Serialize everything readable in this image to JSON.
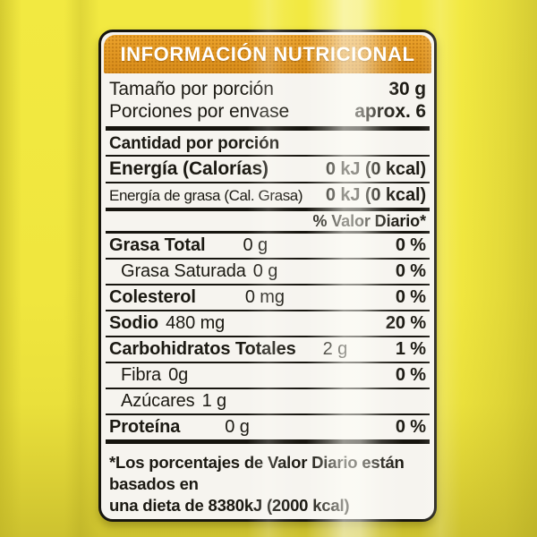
{
  "label": {
    "title": "INFORMACIÓN NUTRICIONAL",
    "serving_rows": [
      {
        "label": "Tamaño por porción",
        "value": "30 g"
      },
      {
        "label": "Porciones por envase",
        "value": "aprox. 6"
      }
    ],
    "section_heading": "Cantidad por porción",
    "energy_rows": [
      {
        "label": "Energía (Calorías)",
        "value": "0 kJ (0 kcal)"
      },
      {
        "label": "Energía de grasa (Cal. Grasa)",
        "value": "0 kJ (0 kcal)"
      }
    ],
    "daily_value_heading": "% Valor Diario*",
    "nutrients": [
      {
        "name": "Grasa Total",
        "amount": "0 g",
        "dv": "0 %"
      },
      {
        "name": "Grasa Saturada",
        "amount": "0 g",
        "dv": "0 %"
      },
      {
        "name": "Colesterol",
        "amount": "0 mg",
        "dv": "0 %"
      },
      {
        "name": "Sodio",
        "amount": "480 mg",
        "dv": "20 %"
      },
      {
        "name": "Carbohidratos Totales",
        "amount": "2 g",
        "dv": "1 %"
      },
      {
        "name": "Fibra",
        "amount": "0g",
        "dv": "0 %"
      },
      {
        "name": "Azúcares",
        "amount": "1 g",
        "dv": ""
      },
      {
        "name": "Proteína",
        "amount": "0 g",
        "dv": "0 %"
      }
    ],
    "footnote": {
      "line1": "*Los porcentajes de Valor Diario están basados en",
      "line2": "una dieta de 8380kJ (2000 kcal)"
    },
    "colors": {
      "header_bg": "#e2951f",
      "header_text": "#ffffff",
      "label_bg": "#f6f4ef",
      "border": "#17150f",
      "text": "#1b1912",
      "background_yellow": "#efe53d"
    }
  }
}
